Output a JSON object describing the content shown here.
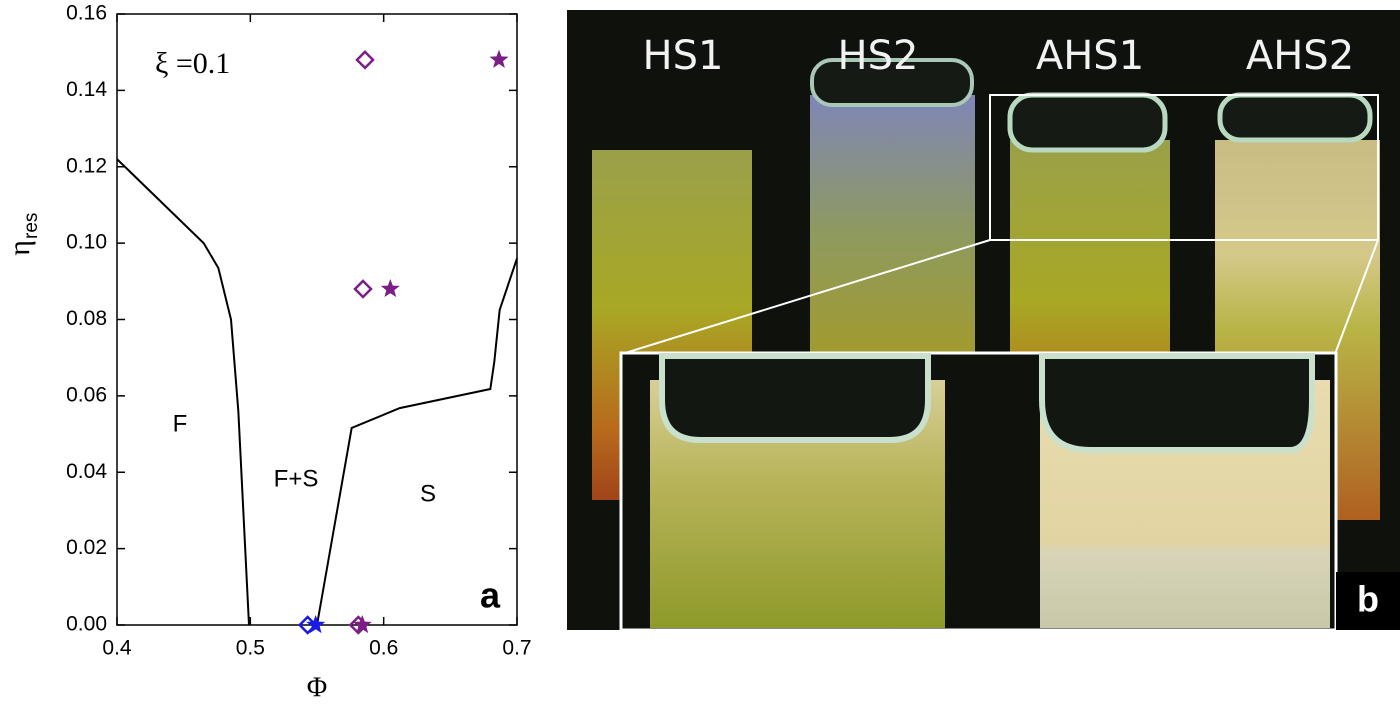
{
  "chart_data": {
    "type": "scatter",
    "x_label": "Φ",
    "y_label": "η",
    "y_label_sub": "res",
    "annotation": "ξ =0.1",
    "regions": [
      "F",
      "F+S",
      "S"
    ],
    "panel_label": "a",
    "xlim": [
      0.4,
      0.7
    ],
    "xticks": [
      0.4,
      0.5,
      0.6,
      0.7
    ],
    "ylim": [
      0,
      0.16
    ],
    "yticks": [
      {
        "value": 0,
        "label": "0.00"
      },
      {
        "value": 0.02,
        "label": "0.02"
      },
      {
        "value": 0.04,
        "label": "0.04"
      },
      {
        "value": 0.06,
        "label": "0.06"
      },
      {
        "value": 0.08,
        "label": "0.08"
      },
      {
        "value": 0.1,
        "label": "0.10"
      },
      {
        "value": 0.12,
        "label": "0.12"
      },
      {
        "value": 0.14,
        "label": "0.14"
      },
      {
        "value": 0.16,
        "label": "0.16"
      }
    ],
    "series": [
      {
        "marker": "line",
        "color": "#000000",
        "x": [
          0.4,
          0.465,
          0.476,
          0.4855,
          0.491,
          0.499
        ],
        "values": [
          0.122,
          0.1,
          0.0935,
          0.08,
          0.056,
          0
        ]
      },
      {
        "marker": "line",
        "color": "#000000",
        "x": [
          0.55,
          0.576,
          0.612,
          0.68,
          0.683,
          0.687,
          0.7
        ],
        "values": [
          0,
          0.0516,
          0.0568,
          0.0618,
          0.069,
          0.0825,
          0.096
        ]
      },
      {
        "marker": "diamond",
        "color": "#7b1f86",
        "x": [
          0.586,
          0.5845,
          0.581
        ],
        "values": [
          0.148,
          0.088,
          0
        ]
      },
      {
        "marker": "star",
        "color": "#7b1f86",
        "x": [
          0.6865,
          0.605,
          0.584
        ],
        "values": [
          0.148,
          0.088,
          0
        ]
      },
      {
        "marker": "diamond",
        "color": "#1a1ae6",
        "x": [
          0.543
        ],
        "values": [
          0
        ]
      },
      {
        "marker": "star",
        "color": "#1a1ae6",
        "x": [
          0.549
        ],
        "values": [
          0
        ]
      }
    ]
  },
  "photo": {
    "labels": [
      "HS1",
      "HS2",
      "AHS1",
      "AHS2"
    ],
    "panel_label": "b"
  }
}
